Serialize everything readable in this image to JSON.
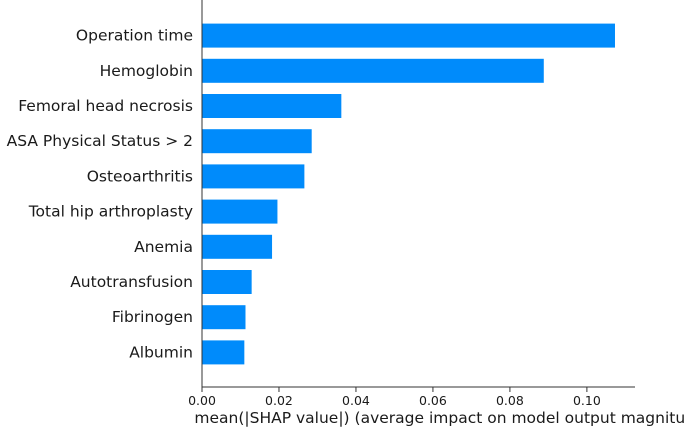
{
  "chart_data": {
    "type": "bar",
    "orientation": "horizontal",
    "categories": [
      "Operation time",
      "Hemoglobin",
      "Femoral head necrosis",
      "ASA Physical Status > 2",
      "Osteoarthritis",
      "Total hip arthroplasty",
      "Anemia",
      "Autotransfusion",
      "Fibrinogen",
      "Albumin"
    ],
    "values": [
      0.1073,
      0.0888,
      0.0362,
      0.0285,
      0.0266,
      0.0196,
      0.0182,
      0.0129,
      0.0113,
      0.011
    ],
    "xlabel": "mean(|SHAP value|) (average impact on model output magnitude)",
    "ylabel": "",
    "xlim": [
      0,
      0.1125
    ],
    "xticks": [
      0,
      0.02,
      0.04,
      0.06,
      0.08,
      0.1
    ],
    "xtick_labels": [
      "0.00",
      "0.02",
      "0.04",
      "0.06",
      "0.08",
      "0.10"
    ],
    "bar_color": "#008bfb",
    "grid": false,
    "legend": "none"
  }
}
